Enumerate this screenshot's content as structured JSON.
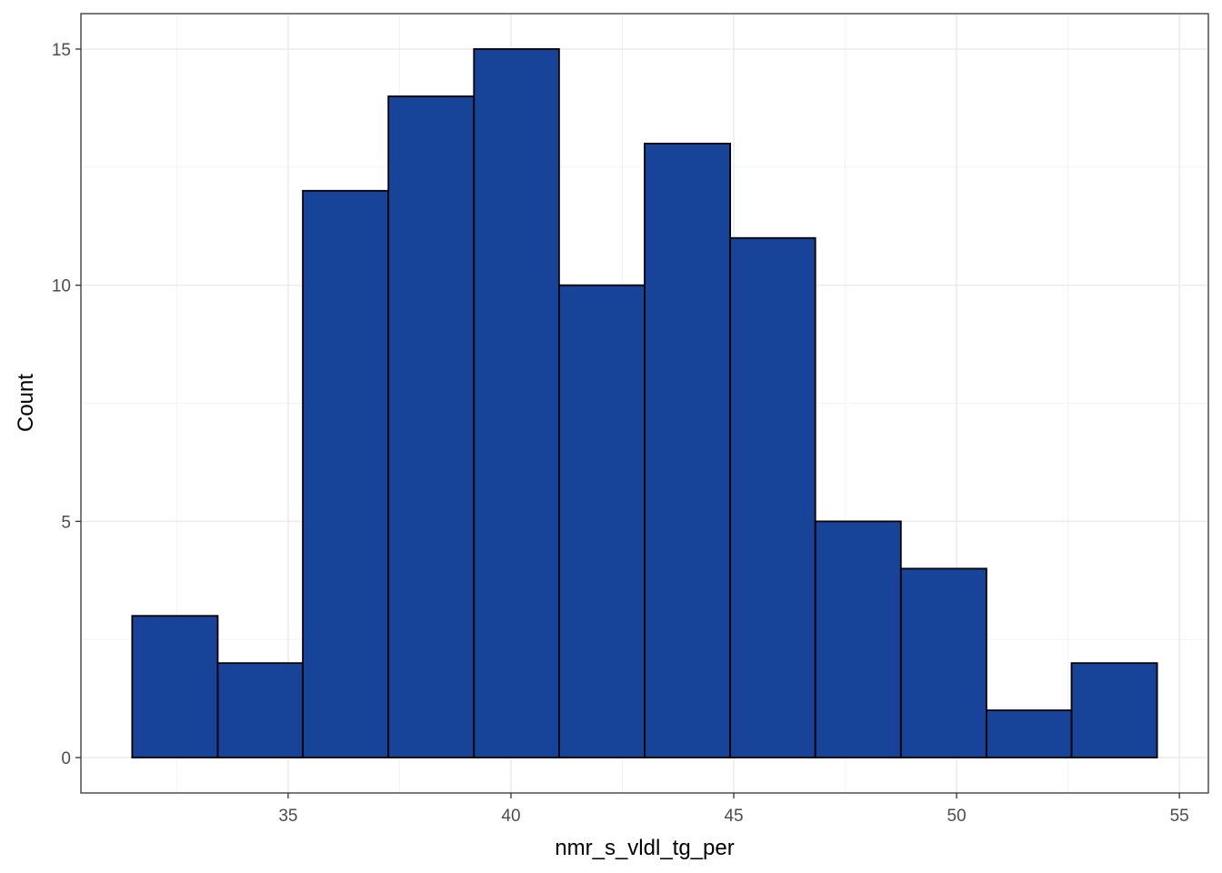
{
  "chart_data": {
    "type": "bar",
    "subtype": "histogram",
    "xlabel": "nmr_s_vldl_tg_per",
    "ylabel": "Count",
    "bin_edges": [
      31.5,
      33.42,
      35.33,
      37.25,
      39.17,
      41.08,
      43.0,
      44.92,
      46.83,
      48.75,
      50.67,
      52.58,
      54.5
    ],
    "values": [
      3,
      2,
      12,
      14,
      15,
      10,
      13,
      11,
      5,
      4,
      1,
      2
    ],
    "xlim": [
      30.35,
      55.65
    ],
    "ylim": [
      -0.75,
      15.75
    ],
    "x_ticks": [
      35,
      40,
      45,
      50,
      55
    ],
    "y_ticks": [
      0,
      5,
      10,
      15
    ],
    "grid": true,
    "colors": {
      "bar_fill": "#174399",
      "bar_stroke": "#000000",
      "grid_major": "#ebebeb",
      "grid_minor": "#f3f3f3",
      "panel_border": "#333333"
    }
  }
}
